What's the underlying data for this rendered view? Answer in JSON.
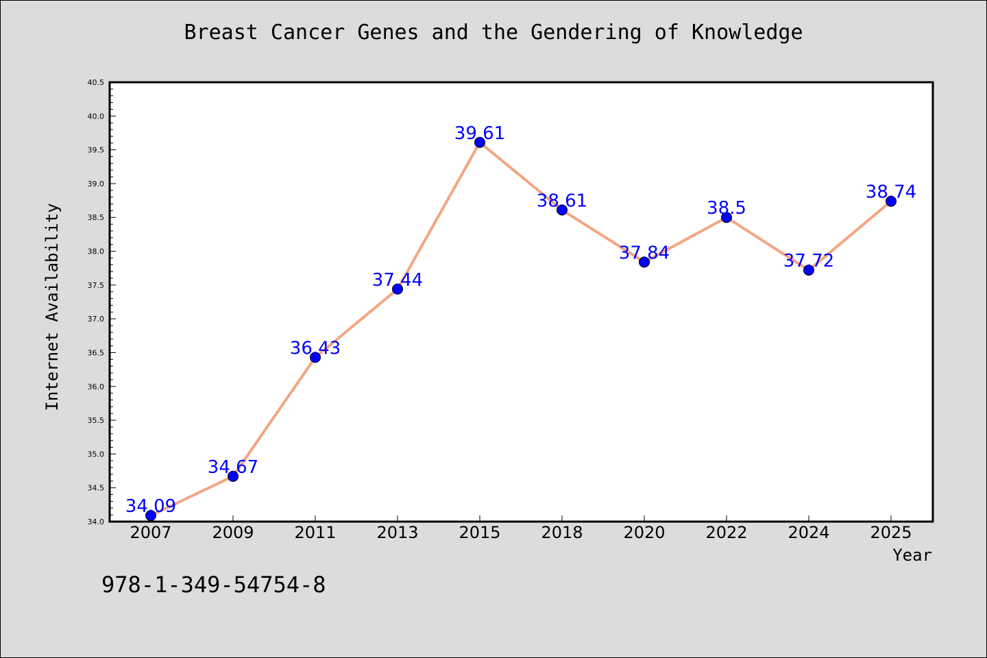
{
  "colors": {
    "background": "#dcdcdc",
    "plot_area": "#ffffff",
    "line": "#f4a582",
    "marker": "#0000ff",
    "data_label": "#0000ff"
  },
  "footnote": "978-1-349-54754-8",
  "chart_data": {
    "type": "line",
    "title": "Breast Cancer Genes and the Gendering of Knowledge",
    "xlabel": "Year",
    "ylabel": "Internet Availability",
    "categories": [
      "2007",
      "2009",
      "2011",
      "2013",
      "2015",
      "2018",
      "2020",
      "2022",
      "2024",
      "2025"
    ],
    "series": [
      {
        "values": [
          34.09,
          34.67,
          36.43,
          37.44,
          39.61,
          38.61,
          37.84,
          38.5,
          37.72,
          38.74
        ],
        "labels": [
          "34.09",
          "34.67",
          "36.43",
          "37.44",
          "39.61",
          "38.61",
          "37.84",
          "38.5",
          "37.72",
          "38.74"
        ]
      }
    ],
    "ylim": [
      34.0,
      40.5
    ],
    "yticks": [
      "34.0",
      "34.5",
      "35.0",
      "35.5",
      "36.0",
      "36.5",
      "37.0",
      "37.5",
      "38.0",
      "38.5",
      "39.0",
      "39.5",
      "40.0",
      "40.5"
    ],
    "grid": false,
    "legend": "none",
    "marker": "circle"
  }
}
